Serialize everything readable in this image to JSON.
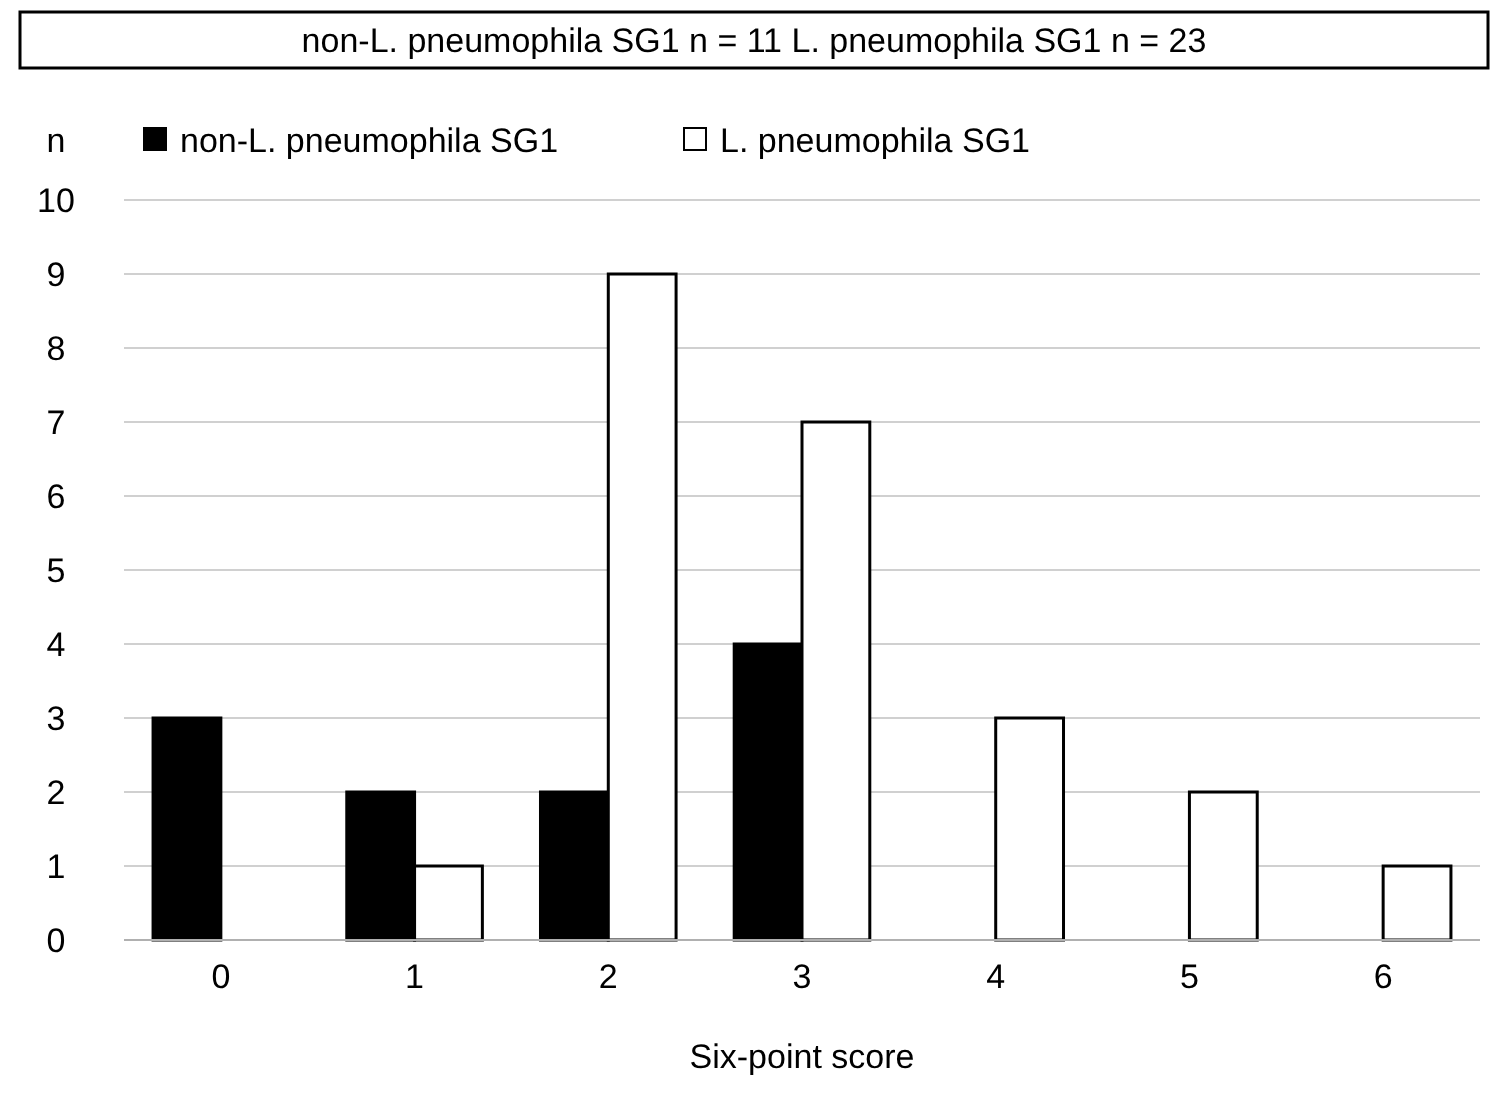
{
  "chart_data": {
    "type": "bar",
    "title": "non-L. pneumophila SG1 n = 11     L. pneumophila SG1 n = 23",
    "xlabel": "Six-point score",
    "ylabel": "n",
    "categories": [
      "0",
      "1",
      "2",
      "3",
      "4",
      "5",
      "6"
    ],
    "series": [
      {
        "name": "non-L. pneumophila SG1",
        "color": "#000000",
        "values": [
          3,
          2,
          2,
          4,
          0,
          0,
          0
        ]
      },
      {
        "name": "L. pneumophila SG1",
        "color": "#ffffff",
        "values": [
          0,
          1,
          9,
          7,
          3,
          2,
          1
        ]
      }
    ],
    "ylim": [
      0,
      10
    ],
    "yticks": [
      0,
      1,
      2,
      3,
      4,
      5,
      6,
      7,
      8,
      9,
      10
    ],
    "grid": "y",
    "legend": "top left"
  }
}
